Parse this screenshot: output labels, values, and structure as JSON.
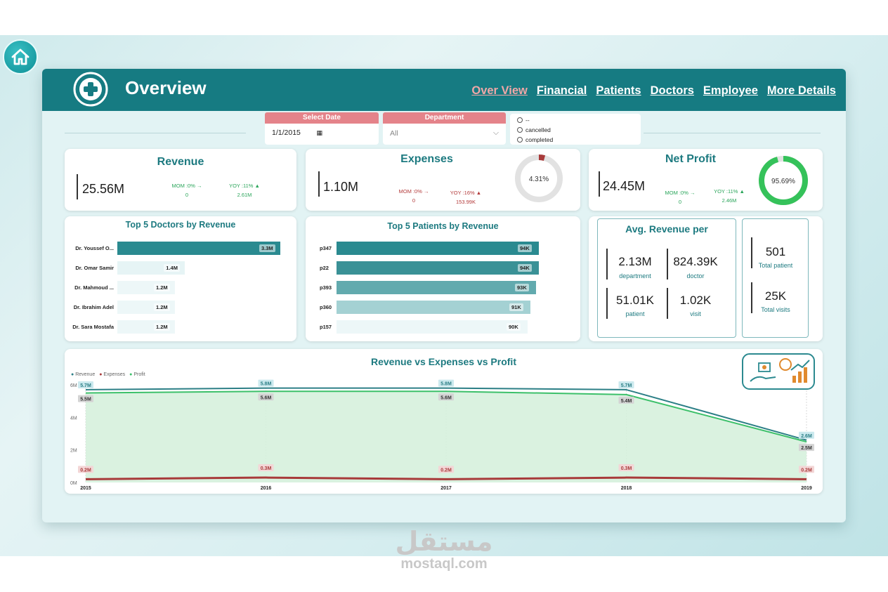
{
  "header": {
    "title": "Overview",
    "nav": [
      "Over View",
      "Financial",
      "Patients",
      "Doctors",
      "Employee",
      "More Details"
    ]
  },
  "filters": {
    "date": {
      "label": "Select Date",
      "value": "1/1/2015"
    },
    "department": {
      "label": "Department",
      "value": "All"
    },
    "status": [
      "--",
      "cancelled",
      "completed"
    ]
  },
  "kpis": {
    "revenue": {
      "title": "Revenue",
      "value": "25.56M",
      "mom_label": "MOM :0% →",
      "mom_val": "0",
      "yoy_label": "YOY :11% ▲",
      "yoy_val": "2.61M"
    },
    "expenses": {
      "title": "Expenses",
      "value": "1.10M",
      "mom_label": "MOM :0% →",
      "mom_val": "0",
      "yoy_label": "YOY :16% ▲",
      "yoy_val": "153.99K",
      "ring_label": "4.31%",
      "ring_pct": 4.31
    },
    "profit": {
      "title": "Net Profit",
      "value": "24.45M",
      "mom_label": "MOM :0% →",
      "mom_val": "0",
      "yoy_label": "YOY :11% ▲",
      "yoy_val": "2.46M",
      "ring_label": "95.69%",
      "ring_pct": 95.69
    }
  },
  "top_doctors": {
    "title": "Top 5 Doctors by Revenue",
    "items": [
      {
        "name": "Dr. Youssef O...",
        "value": 3.3,
        "label": "3.3M"
      },
      {
        "name": "Dr. Omar Samir",
        "value": 1.4,
        "label": "1.4M"
      },
      {
        "name": "Dr. Mahmoud ...",
        "value": 1.2,
        "label": "1.2M"
      },
      {
        "name": "Dr. Ibrahim Adel",
        "value": 1.2,
        "label": "1.2M"
      },
      {
        "name": "Dr. Sara Mostafa",
        "value": 1.2,
        "label": "1.2M"
      }
    ]
  },
  "top_patients": {
    "title": "Top 5 Patients by Revenue",
    "items": [
      {
        "name": "p347",
        "value": 94,
        "label": "94K"
      },
      {
        "name": "p22",
        "value": 94,
        "label": "94K"
      },
      {
        "name": "p393",
        "value": 93,
        "label": "93K"
      },
      {
        "name": "p360",
        "value": 91,
        "label": "91K"
      },
      {
        "name": "p157",
        "value": 90,
        "label": "90K"
      }
    ]
  },
  "avg_revenue": {
    "title": "Avg. Revenue per",
    "items": [
      {
        "value": "2.13M",
        "label": "department"
      },
      {
        "value": "824.39K",
        "label": "doctor"
      },
      {
        "value": "51.01K",
        "label": "patient"
      },
      {
        "value": "1.02K",
        "label": "visit"
      }
    ]
  },
  "totals": [
    {
      "value": "501",
      "label": "Total patient"
    },
    {
      "value": "25K",
      "label": "Total visits"
    }
  ],
  "chart_data": {
    "type": "area",
    "title": "Revenue vs Expenses vs Profit",
    "x": [
      "2015",
      "2016",
      "2017",
      "2018",
      "2019"
    ],
    "yticks": [
      "0M",
      "2M",
      "4M",
      "6M"
    ],
    "ylim": [
      0,
      6
    ],
    "legend_position": "top-left",
    "series": [
      {
        "name": "Revenue",
        "color": "#2c7f86",
        "values": [
          5.7,
          5.8,
          5.8,
          5.7,
          2.6
        ],
        "labels": [
          "5.7M",
          "5.8M",
          "5.8M",
          "5.7M",
          "2.6M"
        ]
      },
      {
        "name": "Expenses",
        "color": "#a83a3a",
        "values": [
          0.2,
          0.3,
          0.2,
          0.3,
          0.2
        ],
        "labels": [
          "0.2M",
          "0.3M",
          "0.2M",
          "0.3M",
          "0.2M"
        ]
      },
      {
        "name": "Profit",
        "color": "#3cc06a",
        "values": [
          5.5,
          5.6,
          5.6,
          5.4,
          2.5
        ],
        "labels": [
          "5.5M",
          "5.6M",
          "5.6M",
          "5.4M",
          "2.5M"
        ]
      }
    ]
  },
  "watermark": {
    "arabic": "مستقل",
    "latin": "mostaql.com"
  }
}
